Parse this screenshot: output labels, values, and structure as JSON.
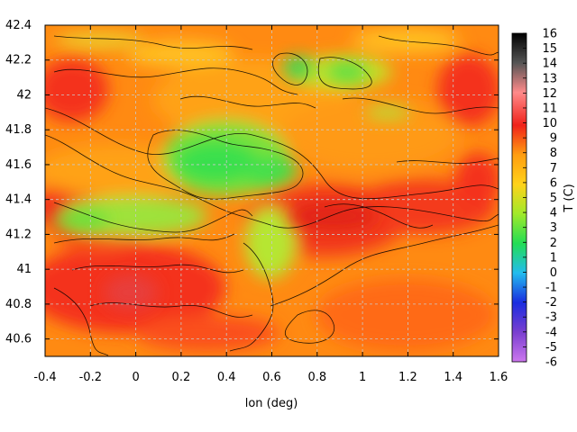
{
  "chart_data": {
    "type": "heatmap",
    "title": "",
    "xlabel": "lon (deg)",
    "ylabel": "",
    "colorbar_label": "T (C)",
    "xlim": [
      -0.4,
      1.6
    ],
    "ylim": [
      40.5,
      42.4
    ],
    "x_ticks": [
      "-0.4",
      "-0.2",
      "0",
      "0.2",
      "0.4",
      "0.6",
      "0.8",
      "1",
      "1.2",
      "1.4",
      "1.6"
    ],
    "y_ticks": [
      "40.6",
      "40.8",
      "41",
      "41.2",
      "41.4",
      "41.6",
      "41.8",
      "42",
      "42.2",
      "42.4"
    ],
    "colorbar_range": [
      -6,
      16
    ],
    "colorbar_ticks": [
      "-6",
      "-5",
      "-4",
      "-3",
      "-2",
      "-1",
      "0",
      "1",
      "2",
      "3",
      "4",
      "5",
      "6",
      "7",
      "8",
      "9",
      "10",
      "11",
      "12",
      "13",
      "14",
      "15",
      "16"
    ],
    "grid": true,
    "contours": true,
    "colors": {
      "-6": "#cc77ee",
      "-4": "#7a3fd0",
      "-2": "#1a2ce0",
      "0": "#22bcee",
      "2": "#22dd55",
      "4": "#a0ea2a",
      "6": "#ffd21a",
      "8": "#ff9d10",
      "10": "#f0221a",
      "12": "#ff8a8a",
      "14": "#555555",
      "16": "#000000"
    }
  }
}
